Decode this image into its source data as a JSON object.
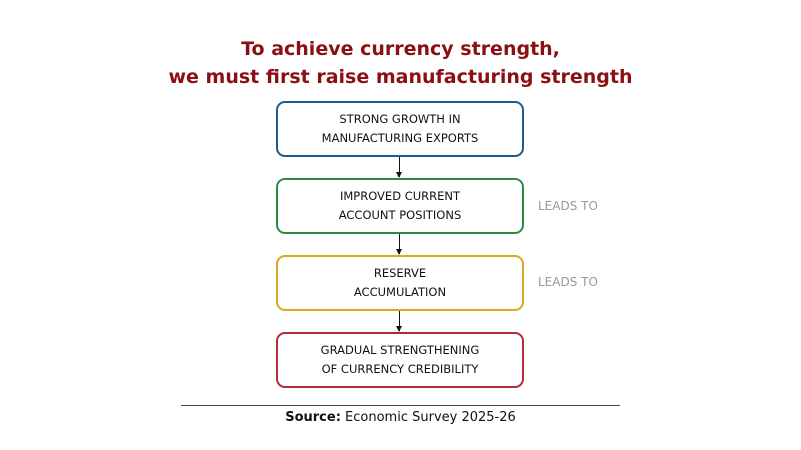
{
  "title": {
    "line1": "To achieve currency strength,",
    "line2": "we must first raise manufacturing strength"
  },
  "colors": {
    "title": "#8b1014",
    "box1": "#1f5a8e",
    "box2": "#2e8b3e",
    "box3": "#d8aa22",
    "box4": "#b52a3a"
  },
  "steps": [
    {
      "line1": "STRONG GROWTH IN",
      "line2": "MANUFACTURING EXPORTS"
    },
    {
      "line1": "IMPROVED CURRENT",
      "line2": "ACCOUNT POSITIONS"
    },
    {
      "line1": "RESERVE",
      "line2": "ACCUMULATION"
    },
    {
      "line1": "GRADUAL STRENGTHENING",
      "line2": "OF CURRENCY CREDIBILITY"
    }
  ],
  "connector_labels": [
    "LEADS TO",
    "LEADS TO"
  ],
  "source": {
    "label": "Source:",
    "text": " Economic Survey 2025-26"
  }
}
